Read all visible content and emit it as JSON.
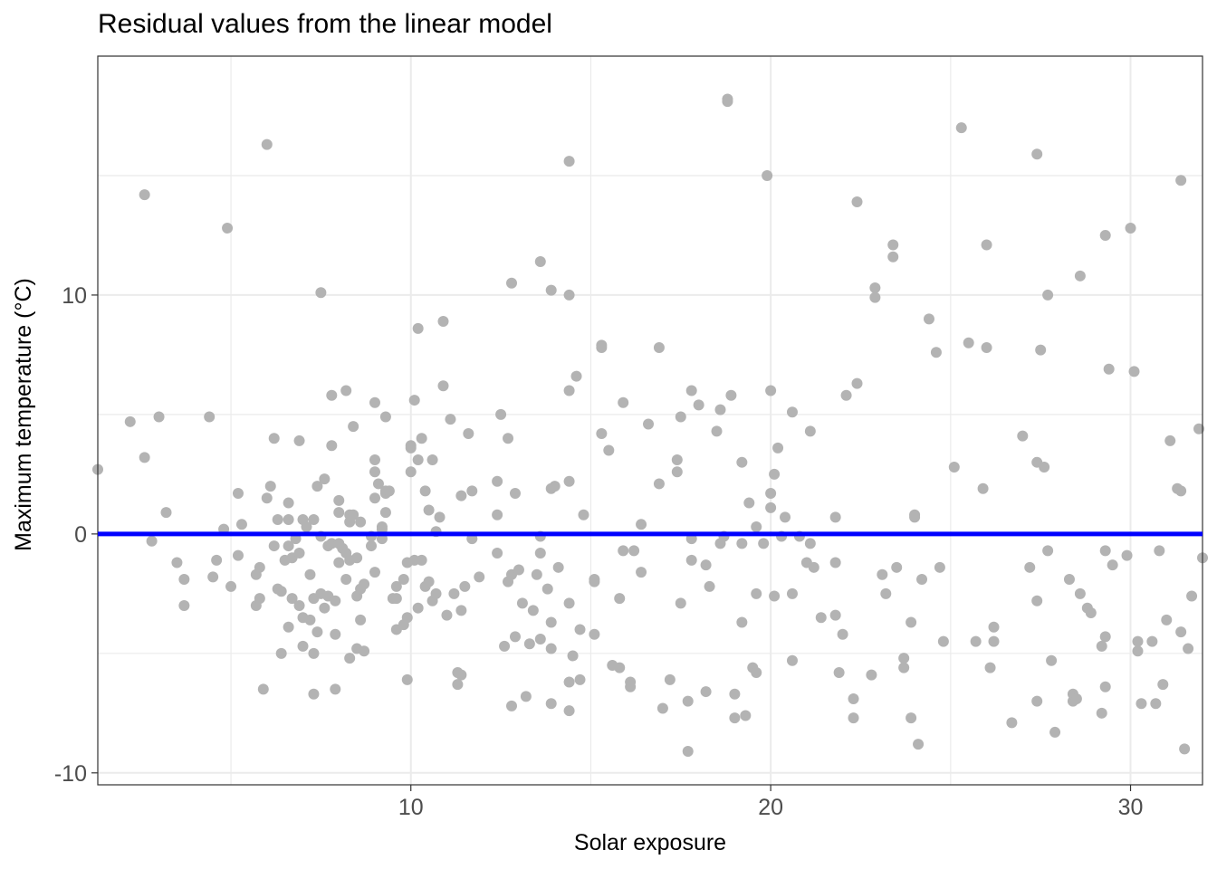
{
  "chart_data": {
    "type": "scatter",
    "title": "Residual values from the linear model",
    "xlabel": "Solar exposure",
    "ylabel": "Maximum temperature (°C)",
    "xlim": [
      1.3,
      32.0
    ],
    "ylim": [
      -10.5,
      20.0
    ],
    "x_ticks": [
      10,
      20,
      30
    ],
    "y_ticks": [
      -10,
      0,
      10
    ],
    "grid": true,
    "colors": {
      "points": "#b3b3b3",
      "reference_line": "#0000ff",
      "grid": "#ebebeb",
      "panel_border": "#333333"
    },
    "reference_line": {
      "y": 0
    },
    "points": [
      [
        1.3,
        2.7
      ],
      [
        2.2,
        4.7
      ],
      [
        2.6,
        14.2
      ],
      [
        2.6,
        3.2
      ],
      [
        2.8,
        -0.3
      ],
      [
        3.0,
        4.9
      ],
      [
        3.2,
        0.9
      ],
      [
        3.5,
        -1.2
      ],
      [
        3.7,
        -1.9
      ],
      [
        3.7,
        -3.0
      ],
      [
        4.4,
        4.9
      ],
      [
        4.5,
        -1.8
      ],
      [
        4.6,
        -1.1
      ],
      [
        4.8,
        0.2
      ],
      [
        4.9,
        12.8
      ],
      [
        5.0,
        -2.2
      ],
      [
        5.2,
        1.7
      ],
      [
        5.2,
        -0.9
      ],
      [
        5.3,
        0.4
      ],
      [
        5.7,
        -1.7
      ],
      [
        5.7,
        -3.0
      ],
      [
        5.8,
        -1.4
      ],
      [
        5.8,
        -2.7
      ],
      [
        5.9,
        -6.5
      ],
      [
        6.0,
        16.3
      ],
      [
        6.0,
        1.5
      ],
      [
        6.1,
        2.0
      ],
      [
        6.2,
        -0.5
      ],
      [
        6.2,
        4.0
      ],
      [
        6.3,
        0.6
      ],
      [
        6.3,
        -2.3
      ],
      [
        6.4,
        -2.4
      ],
      [
        6.4,
        -5.0
      ],
      [
        6.5,
        -1.1
      ],
      [
        6.6,
        0.6
      ],
      [
        6.6,
        1.3
      ],
      [
        6.6,
        -0.5
      ],
      [
        6.6,
        -3.9
      ],
      [
        6.7,
        -2.7
      ],
      [
        6.7,
        -1.0
      ],
      [
        6.8,
        -0.2
      ],
      [
        6.9,
        -0.8
      ],
      [
        6.9,
        -3.0
      ],
      [
        6.9,
        3.9
      ],
      [
        7.0,
        0.6
      ],
      [
        7.0,
        -3.5
      ],
      [
        7.0,
        -4.7
      ],
      [
        7.1,
        0.3
      ],
      [
        7.2,
        -1.7
      ],
      [
        7.2,
        -3.6
      ],
      [
        7.3,
        -2.7
      ],
      [
        7.3,
        0.6
      ],
      [
        7.3,
        -5.0
      ],
      [
        7.3,
        -6.7
      ],
      [
        7.4,
        2.0
      ],
      [
        7.4,
        -4.1
      ],
      [
        7.5,
        10.1
      ],
      [
        7.5,
        -0.1
      ],
      [
        7.5,
        -2.5
      ],
      [
        7.6,
        2.3
      ],
      [
        7.6,
        -3.1
      ],
      [
        7.7,
        -2.6
      ],
      [
        7.7,
        -0.5
      ],
      [
        7.8,
        5.8
      ],
      [
        7.8,
        3.7
      ],
      [
        7.8,
        -0.4
      ],
      [
        7.9,
        -2.8
      ],
      [
        7.9,
        -4.2
      ],
      [
        7.9,
        -6.5
      ],
      [
        8.0,
        1.4
      ],
      [
        8.0,
        0.9
      ],
      [
        8.0,
        -0.4
      ],
      [
        8.0,
        -1.2
      ],
      [
        8.1,
        -0.6
      ],
      [
        8.2,
        -0.8
      ],
      [
        8.2,
        -1.9
      ],
      [
        8.2,
        6.0
      ],
      [
        8.3,
        0.8
      ],
      [
        8.3,
        0.5
      ],
      [
        8.3,
        -1.1
      ],
      [
        8.3,
        -5.2
      ],
      [
        8.4,
        4.5
      ],
      [
        8.4,
        0.8
      ],
      [
        8.5,
        -1.0
      ],
      [
        8.5,
        -2.6
      ],
      [
        8.5,
        -4.8
      ],
      [
        8.6,
        0.5
      ],
      [
        8.6,
        -2.3
      ],
      [
        8.6,
        -3.6
      ],
      [
        8.7,
        -2.1
      ],
      [
        8.7,
        -4.9
      ],
      [
        8.9,
        -0.1
      ],
      [
        8.9,
        -0.5
      ],
      [
        9.0,
        5.5
      ],
      [
        9.0,
        3.1
      ],
      [
        9.0,
        2.6
      ],
      [
        9.0,
        1.5
      ],
      [
        9.0,
        -1.6
      ],
      [
        9.1,
        2.1
      ],
      [
        9.2,
        0.2
      ],
      [
        9.2,
        0.3
      ],
      [
        9.2,
        -0.2
      ],
      [
        9.3,
        1.7
      ],
      [
        9.3,
        1.8
      ],
      [
        9.3,
        4.9
      ],
      [
        9.3,
        0.9
      ],
      [
        9.4,
        1.8
      ],
      [
        9.5,
        -2.7
      ],
      [
        9.6,
        -2.2
      ],
      [
        9.6,
        -2.7
      ],
      [
        9.6,
        -4.0
      ],
      [
        9.8,
        -1.9
      ],
      [
        9.8,
        -3.8
      ],
      [
        9.9,
        -1.2
      ],
      [
        9.9,
        -3.5
      ],
      [
        9.9,
        -6.1
      ],
      [
        10.0,
        3.7
      ],
      [
        10.0,
        3.6
      ],
      [
        10.0,
        2.6
      ],
      [
        10.1,
        5.6
      ],
      [
        10.1,
        -1.1
      ],
      [
        10.2,
        8.6
      ],
      [
        10.2,
        3.1
      ],
      [
        10.2,
        -3.1
      ],
      [
        10.3,
        4.0
      ],
      [
        10.3,
        -1.1
      ],
      [
        10.4,
        1.8
      ],
      [
        10.4,
        -2.2
      ],
      [
        10.5,
        1.0
      ],
      [
        10.5,
        -2.0
      ],
      [
        10.6,
        3.1
      ],
      [
        10.6,
        -2.8
      ],
      [
        10.7,
        0.1
      ],
      [
        10.7,
        -2.5
      ],
      [
        10.8,
        0.7
      ],
      [
        10.9,
        8.9
      ],
      [
        10.9,
        6.2
      ],
      [
        11.0,
        -3.4
      ],
      [
        11.1,
        4.8
      ],
      [
        11.2,
        -2.5
      ],
      [
        11.3,
        -5.8
      ],
      [
        11.3,
        -6.3
      ],
      [
        11.4,
        -5.9
      ],
      [
        11.4,
        1.6
      ],
      [
        11.4,
        -3.2
      ],
      [
        11.5,
        -2.2
      ],
      [
        11.6,
        4.2
      ],
      [
        11.7,
        -0.2
      ],
      [
        11.7,
        1.8
      ],
      [
        11.9,
        -1.8
      ],
      [
        12.4,
        0.8
      ],
      [
        12.4,
        -0.8
      ],
      [
        12.4,
        2.2
      ],
      [
        12.5,
        5.0
      ],
      [
        12.6,
        -4.7
      ],
      [
        12.7,
        4.0
      ],
      [
        12.7,
        -2.0
      ],
      [
        12.8,
        10.5
      ],
      [
        12.8,
        -1.7
      ],
      [
        12.8,
        -7.2
      ],
      [
        12.9,
        1.7
      ],
      [
        12.9,
        -4.3
      ],
      [
        13.0,
        -1.5
      ],
      [
        13.1,
        -2.9
      ],
      [
        13.2,
        -6.8
      ],
      [
        13.3,
        -4.6
      ],
      [
        13.4,
        -3.2
      ],
      [
        13.5,
        -1.7
      ],
      [
        13.6,
        11.4
      ],
      [
        13.6,
        -0.1
      ],
      [
        13.6,
        -0.8
      ],
      [
        13.6,
        -4.4
      ],
      [
        13.8,
        -2.3
      ],
      [
        13.9,
        10.2
      ],
      [
        13.9,
        1.9
      ],
      [
        13.9,
        -3.7
      ],
      [
        13.9,
        -4.8
      ],
      [
        13.9,
        -7.1
      ],
      [
        14.0,
        2.0
      ],
      [
        14.1,
        -1.4
      ],
      [
        14.4,
        15.6
      ],
      [
        14.4,
        10.0
      ],
      [
        14.4,
        6.0
      ],
      [
        14.4,
        2.2
      ],
      [
        14.4,
        -2.9
      ],
      [
        14.4,
        -6.2
      ],
      [
        14.4,
        -7.4
      ],
      [
        14.5,
        -5.1
      ],
      [
        14.6,
        6.6
      ],
      [
        14.7,
        -4.0
      ],
      [
        14.7,
        -6.1
      ],
      [
        14.8,
        0.8
      ],
      [
        15.1,
        -1.9
      ],
      [
        15.1,
        -2.0
      ],
      [
        15.1,
        -4.2
      ],
      [
        15.3,
        7.9
      ],
      [
        15.3,
        7.8
      ],
      [
        15.3,
        4.2
      ],
      [
        15.5,
        3.5
      ],
      [
        15.6,
        -5.5
      ],
      [
        15.8,
        -5.6
      ],
      [
        15.8,
        -2.7
      ],
      [
        15.9,
        5.5
      ],
      [
        15.9,
        -0.7
      ],
      [
        16.1,
        -6.2
      ],
      [
        16.1,
        -6.4
      ],
      [
        16.2,
        -0.7
      ],
      [
        16.4,
        0.4
      ],
      [
        16.4,
        -1.6
      ],
      [
        16.6,
        4.6
      ],
      [
        16.9,
        7.8
      ],
      [
        16.9,
        2.1
      ],
      [
        17.0,
        -7.3
      ],
      [
        17.2,
        -6.1
      ],
      [
        17.4,
        3.1
      ],
      [
        17.4,
        2.6
      ],
      [
        17.5,
        4.9
      ],
      [
        17.5,
        -2.9
      ],
      [
        17.7,
        -9.1
      ],
      [
        17.7,
        -7.0
      ],
      [
        17.8,
        6.0
      ],
      [
        17.8,
        -0.2
      ],
      [
        17.8,
        -1.1
      ],
      [
        18.0,
        5.4
      ],
      [
        18.2,
        -6.6
      ],
      [
        18.2,
        -1.3
      ],
      [
        18.3,
        -2.2
      ],
      [
        18.5,
        4.3
      ],
      [
        18.6,
        5.2
      ],
      [
        18.6,
        -0.4
      ],
      [
        18.7,
        -0.1
      ],
      [
        18.8,
        18.2
      ],
      [
        18.8,
        18.1
      ],
      [
        18.9,
        5.8
      ],
      [
        19.0,
        -6.7
      ],
      [
        19.0,
        -7.7
      ],
      [
        19.2,
        3.0
      ],
      [
        19.2,
        -0.4
      ],
      [
        19.2,
        -3.7
      ],
      [
        19.3,
        -7.6
      ],
      [
        19.4,
        1.3
      ],
      [
        19.5,
        -5.6
      ],
      [
        19.6,
        -5.8
      ],
      [
        19.6,
        -2.5
      ],
      [
        19.6,
        0.3
      ],
      [
        19.8,
        -0.4
      ],
      [
        19.9,
        15.0
      ],
      [
        20.0,
        6.0
      ],
      [
        20.0,
        1.7
      ],
      [
        20.0,
        1.1
      ],
      [
        20.1,
        2.5
      ],
      [
        20.1,
        -2.6
      ],
      [
        20.2,
        3.6
      ],
      [
        20.3,
        -0.1
      ],
      [
        20.4,
        0.7
      ],
      [
        20.6,
        5.1
      ],
      [
        20.6,
        -2.5
      ],
      [
        20.6,
        -5.3
      ],
      [
        20.8,
        -0.1
      ],
      [
        21.0,
        -1.2
      ],
      [
        21.1,
        4.3
      ],
      [
        21.1,
        -0.4
      ],
      [
        21.2,
        -1.4
      ],
      [
        21.4,
        -3.5
      ],
      [
        21.8,
        0.7
      ],
      [
        21.8,
        -1.2
      ],
      [
        21.8,
        -3.4
      ],
      [
        21.9,
        -5.8
      ],
      [
        22.0,
        -4.2
      ],
      [
        22.1,
        5.8
      ],
      [
        22.3,
        -6.9
      ],
      [
        22.3,
        -7.7
      ],
      [
        22.4,
        13.9
      ],
      [
        22.4,
        6.3
      ],
      [
        22.8,
        -5.9
      ],
      [
        22.9,
        10.3
      ],
      [
        22.9,
        9.9
      ],
      [
        23.1,
        -1.7
      ],
      [
        23.2,
        -2.5
      ],
      [
        23.4,
        12.1
      ],
      [
        23.4,
        11.6
      ],
      [
        23.5,
        -1.4
      ],
      [
        23.7,
        -5.2
      ],
      [
        23.7,
        -5.6
      ],
      [
        23.9,
        -3.7
      ],
      [
        23.9,
        -7.7
      ],
      [
        24.0,
        0.8
      ],
      [
        24.0,
        0.7
      ],
      [
        24.1,
        -8.8
      ],
      [
        24.2,
        -1.9
      ],
      [
        24.4,
        9.0
      ],
      [
        24.6,
        7.6
      ],
      [
        24.7,
        -1.4
      ],
      [
        24.8,
        -4.5
      ],
      [
        25.1,
        2.8
      ],
      [
        25.3,
        17.0
      ],
      [
        25.5,
        8.0
      ],
      [
        25.7,
        -4.5
      ],
      [
        25.9,
        1.9
      ],
      [
        26.0,
        12.1
      ],
      [
        26.0,
        7.8
      ],
      [
        26.1,
        -5.6
      ],
      [
        26.2,
        -3.9
      ],
      [
        26.2,
        -4.5
      ],
      [
        26.7,
        -7.9
      ],
      [
        27.0,
        4.1
      ],
      [
        27.2,
        -1.4
      ],
      [
        27.4,
        15.9
      ],
      [
        27.4,
        3.0
      ],
      [
        27.4,
        -2.8
      ],
      [
        27.4,
        -7.0
      ],
      [
        27.5,
        7.7
      ],
      [
        27.6,
        2.8
      ],
      [
        27.7,
        10.0
      ],
      [
        27.7,
        -0.7
      ],
      [
        27.8,
        -5.3
      ],
      [
        27.9,
        -8.3
      ],
      [
        28.3,
        -1.9
      ],
      [
        28.4,
        -7.0
      ],
      [
        28.4,
        -6.7
      ],
      [
        28.5,
        -6.9
      ],
      [
        28.6,
        10.8
      ],
      [
        28.6,
        -2.5
      ],
      [
        28.8,
        -3.1
      ],
      [
        28.9,
        -3.3
      ],
      [
        29.2,
        -4.7
      ],
      [
        29.2,
        -7.5
      ],
      [
        29.3,
        12.5
      ],
      [
        29.3,
        -0.7
      ],
      [
        29.3,
        -4.3
      ],
      [
        29.3,
        -6.4
      ],
      [
        29.4,
        6.9
      ],
      [
        29.5,
        -1.3
      ],
      [
        29.9,
        -0.9
      ],
      [
        30.0,
        12.8
      ],
      [
        30.1,
        6.8
      ],
      [
        30.2,
        -4.5
      ],
      [
        30.2,
        -4.9
      ],
      [
        30.3,
        -7.1
      ],
      [
        30.6,
        -4.5
      ],
      [
        30.7,
        -7.1
      ],
      [
        30.8,
        -0.7
      ],
      [
        30.9,
        -6.3
      ],
      [
        31.0,
        -3.6
      ],
      [
        31.1,
        3.9
      ],
      [
        31.3,
        1.9
      ],
      [
        31.4,
        14.8
      ],
      [
        31.4,
        1.8
      ],
      [
        31.4,
        -4.1
      ],
      [
        31.5,
        -9.0
      ],
      [
        31.6,
        -4.8
      ],
      [
        31.7,
        -2.6
      ],
      [
        31.9,
        4.4
      ],
      [
        32.0,
        -1.0
      ]
    ]
  }
}
